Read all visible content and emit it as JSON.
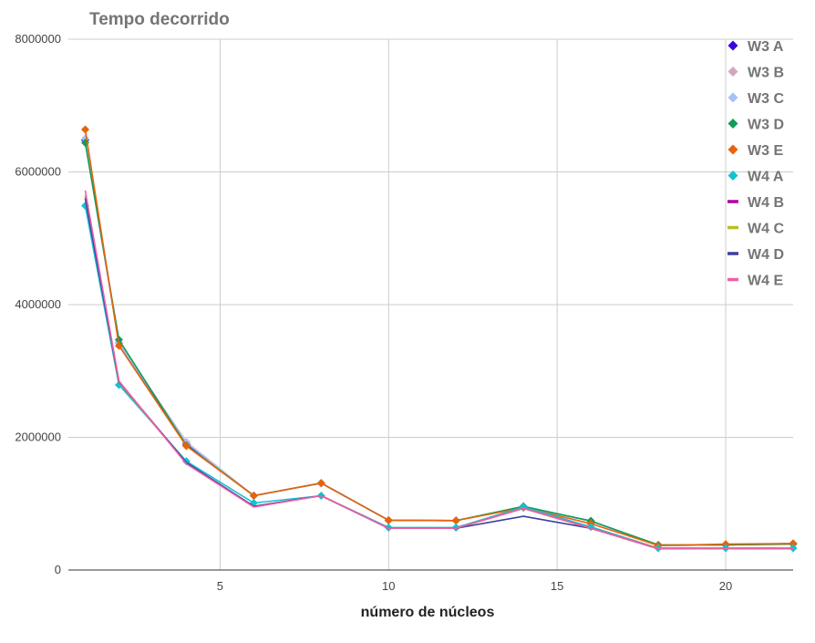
{
  "chart_data": {
    "type": "line",
    "title": "Tempo decorrido",
    "xlabel": "número de núcleos",
    "ylabel": "",
    "xlim": [
      0.5,
      22
    ],
    "ylim": [
      0,
      8000000
    ],
    "xticks": [
      5,
      10,
      15,
      20
    ],
    "yticks": [
      0,
      2000000,
      4000000,
      6000000,
      8000000
    ],
    "grid": true,
    "legend_position": "right",
    "x": [
      1,
      2,
      4,
      6,
      8,
      10,
      12,
      14,
      16,
      18,
      20,
      22
    ],
    "series": [
      {
        "name": "W3 A",
        "color": "#3d00e0",
        "marker": "diamond",
        "values": [
          6480000,
          3420000,
          1900000,
          1120000,
          1310000,
          750000,
          745000,
          950000,
          740000,
          370000,
          380000,
          400000
        ]
      },
      {
        "name": "W3 B",
        "color": "#d5a6bd",
        "marker": "diamond",
        "values": [
          6500000,
          3430000,
          1930000,
          1120000,
          1310000,
          750000,
          745000,
          950000,
          740000,
          370000,
          380000,
          400000
        ]
      },
      {
        "name": "W3 C",
        "color": "#a4c2f4",
        "marker": "diamond",
        "values": [
          6500000,
          3420000,
          1920000,
          1120000,
          1310000,
          750000,
          745000,
          950000,
          740000,
          370000,
          380000,
          400000
        ]
      },
      {
        "name": "W3 D",
        "color": "#0f9d58",
        "marker": "diamond",
        "values": [
          6440000,
          3470000,
          1880000,
          1120000,
          1310000,
          750000,
          745000,
          960000,
          740000,
          380000,
          380000,
          390000
        ]
      },
      {
        "name": "W3 E",
        "color": "#e8630a",
        "marker": "diamond",
        "values": [
          6640000,
          3380000,
          1870000,
          1120000,
          1310000,
          750000,
          745000,
          940000,
          700000,
          370000,
          390000,
          400000
        ]
      },
      {
        "name": "W4 A",
        "color": "#12c2d0",
        "marker": "diamond",
        "values": [
          5490000,
          2790000,
          1640000,
          1010000,
          1120000,
          640000,
          640000,
          950000,
          650000,
          330000,
          330000,
          330000
        ]
      },
      {
        "name": "W4 B",
        "color": "#b1009f",
        "marker": "line",
        "values": [
          5620000,
          2830000,
          1610000,
          960000,
          1120000,
          630000,
          630000,
          930000,
          630000,
          330000,
          330000,
          330000
        ]
      },
      {
        "name": "W4 C",
        "color": "#bcbd22",
        "marker": "line",
        "values": [
          5650000,
          2830000,
          1610000,
          960000,
          1120000,
          630000,
          630000,
          930000,
          630000,
          330000,
          330000,
          330000
        ]
      },
      {
        "name": "W4 D",
        "color": "#3f3fa0",
        "marker": "line",
        "values": [
          5600000,
          2840000,
          1620000,
          960000,
          1120000,
          630000,
          630000,
          810000,
          630000,
          320000,
          320000,
          320000
        ]
      },
      {
        "name": "W4 E",
        "color": "#ee5fa7",
        "marker": "line",
        "values": [
          5720000,
          2850000,
          1600000,
          950000,
          1120000,
          630000,
          630000,
          930000,
          630000,
          320000,
          320000,
          320000
        ]
      }
    ]
  }
}
